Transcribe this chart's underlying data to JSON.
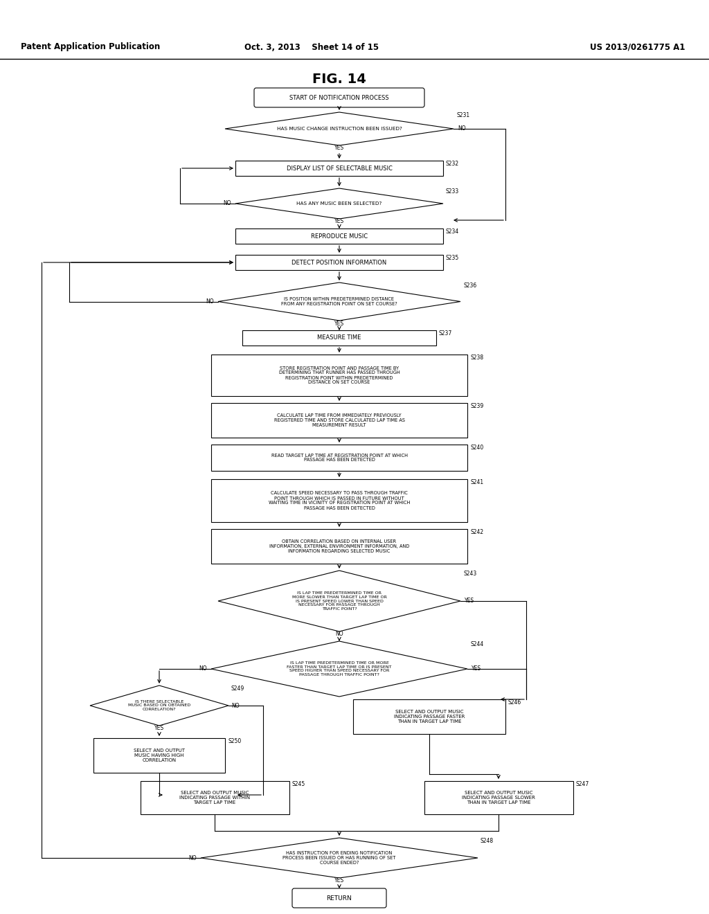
{
  "title": "FIG. 14",
  "header_left": "Patent Application Publication",
  "header_mid": "Oct. 3, 2013    Sheet 14 of 15",
  "header_right": "US 2013/0261775 A1",
  "bg_color": "#ffffff",
  "line_color": "#000000",
  "text_color": "#000000",
  "fig_title": "FIG. 14"
}
